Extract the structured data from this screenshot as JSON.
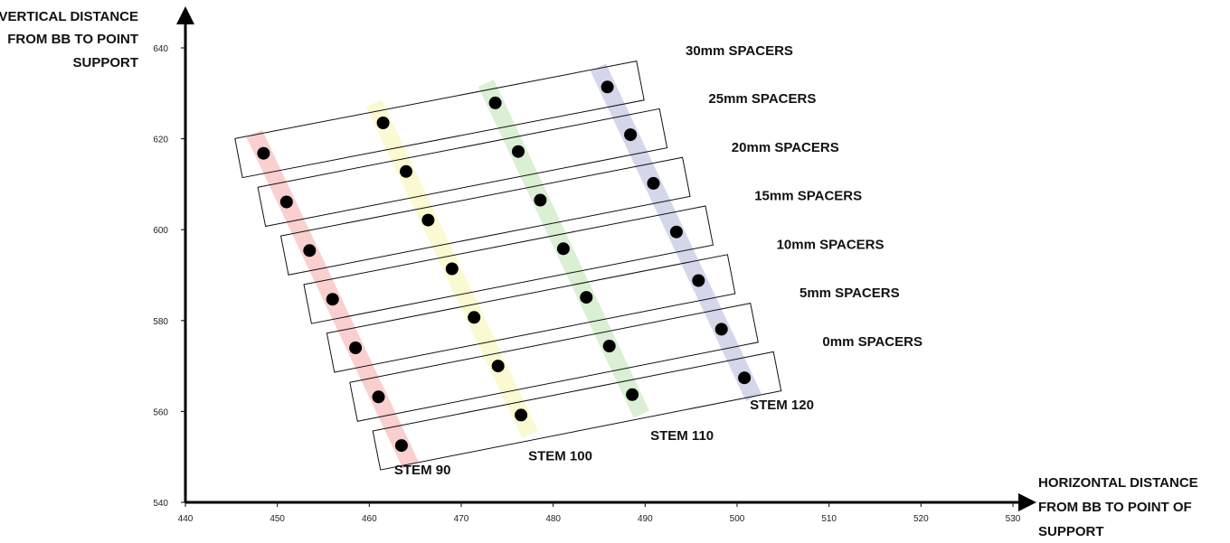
{
  "chart_data": {
    "type": "scatter",
    "xlabel": [
      "HORIZONTAL DISTANCE",
      "FROM BB TO POINT OF",
      "SUPPORT"
    ],
    "ylabel": [
      "VERTICAL DISTANCE",
      "FROM BB TO POINT",
      "SUPPORT"
    ],
    "xlim": [
      440,
      530
    ],
    "ylim": [
      540,
      640
    ],
    "xticks": [
      "440",
      "450",
      "460",
      "470",
      "480",
      "490",
      "500",
      "510",
      "520",
      "530"
    ],
    "yticks": [
      "540",
      "560",
      "580",
      "600",
      "620",
      "640"
    ],
    "grid": false,
    "spacer_labels": [
      "0mm SPACERS",
      "5mm SPACERS",
      "10mm SPACERS",
      "15mm SPACERS",
      "20mm SPACERS",
      "25mm SPACERS",
      "30mm SPACERS"
    ],
    "series": [
      {
        "name": "STEM 90",
        "color": "#f08080",
        "x": [
          463.5,
          461.0,
          458.5,
          456.0,
          453.5,
          451.0,
          448.5
        ],
        "y": [
          552.5,
          563.2,
          574.0,
          584.7,
          595.4,
          606.1,
          616.8
        ]
      },
      {
        "name": "STEM 100",
        "color": "#f5ef8a",
        "x": [
          476.5,
          474.0,
          471.4,
          469.0,
          466.4,
          464.0,
          461.5
        ],
        "y": [
          559.2,
          570.0,
          580.7,
          591.4,
          602.1,
          612.8,
          623.5
        ]
      },
      {
        "name": "STEM 110",
        "color": "#9fd48f",
        "x": [
          488.6,
          486.1,
          483.6,
          481.1,
          478.6,
          476.2,
          473.7
        ],
        "y": [
          563.7,
          574.4,
          585.1,
          595.8,
          606.5,
          617.2,
          627.9
        ]
      },
      {
        "name": "STEM 120",
        "color": "#8d96c4",
        "x": [
          500.8,
          498.3,
          495.8,
          493.4,
          490.9,
          488.4,
          485.9
        ],
        "y": [
          567.4,
          578.1,
          588.8,
          599.5,
          610.2,
          620.9,
          631.4
        ]
      }
    ]
  }
}
